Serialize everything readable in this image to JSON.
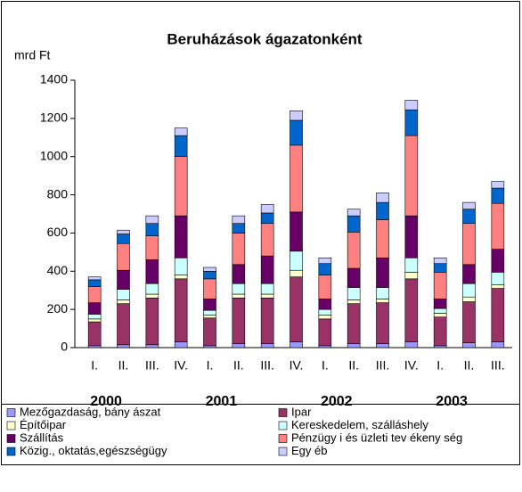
{
  "chart_data": {
    "type": "stacked_bar",
    "title": "Beruházások ágazatonként",
    "y_axis_label": "mrd Ft",
    "categories": [
      "I.",
      "II.",
      "III.",
      "IV.",
      "I.",
      "II.",
      "III.",
      "IV.",
      "I.",
      "II.",
      "III.",
      "IV.",
      "I.",
      "II.",
      "III."
    ],
    "groups": [
      "2000",
      "2001",
      "2002",
      "2003"
    ],
    "ylim": [
      0,
      1400
    ],
    "yticks": [
      0,
      200,
      400,
      600,
      800,
      1000,
      1200,
      1400
    ],
    "series": [
      {
        "name": "Mezőgazdaság, bány ászat",
        "color": "#9999ff",
        "values": [
          10,
          15,
          15,
          30,
          10,
          20,
          20,
          30,
          10,
          20,
          20,
          30,
          10,
          25,
          30
        ]
      },
      {
        "name": "Ipar",
        "color": "#993366",
        "values": [
          125,
          215,
          245,
          330,
          145,
          240,
          240,
          340,
          140,
          210,
          215,
          330,
          150,
          215,
          280
        ]
      },
      {
        "name": "Építőipar",
        "color": "#ffffcc",
        "values": [
          15,
          20,
          20,
          20,
          15,
          20,
          20,
          35,
          20,
          20,
          20,
          35,
          20,
          25,
          20
        ]
      },
      {
        "name": "Kereskedelem, szálláshely",
        "color": "#ccffff",
        "values": [
          25,
          55,
          55,
          90,
          25,
          55,
          55,
          100,
          30,
          65,
          60,
          75,
          25,
          70,
          65
        ]
      },
      {
        "name": "Szállítás",
        "color": "#660066",
        "values": [
          60,
          100,
          125,
          220,
          60,
          100,
          145,
          205,
          55,
          100,
          155,
          220,
          50,
          100,
          120
        ]
      },
      {
        "name": "Pénzügy i és üzleti tev ékeny ség",
        "color": "#ff8080",
        "values": [
          85,
          140,
          125,
          310,
          105,
          165,
          170,
          350,
          125,
          190,
          200,
          420,
          140,
          215,
          240
        ]
      },
      {
        "name": "Közig., oktatás,egészségügy",
        "color": "#0066cc",
        "values": [
          35,
          50,
          65,
          110,
          40,
          50,
          55,
          130,
          60,
          85,
          90,
          135,
          45,
          75,
          80
        ]
      },
      {
        "name": "Egy éb",
        "color": "#ccccff",
        "values": [
          15,
          20,
          40,
          40,
          20,
          40,
          45,
          50,
          30,
          35,
          50,
          50,
          30,
          35,
          35
        ]
      }
    ]
  }
}
